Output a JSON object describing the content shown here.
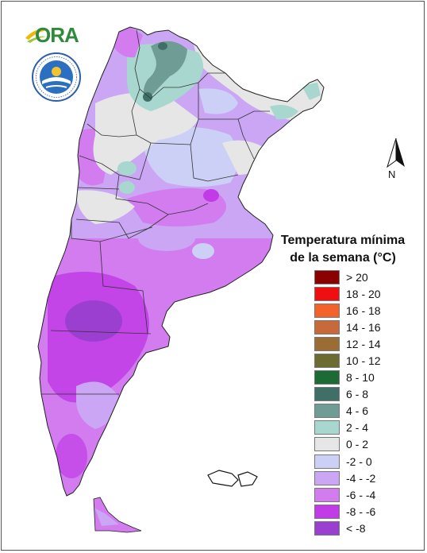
{
  "logo_ora": {
    "text": "ORA"
  },
  "logo_smn": {
    "ring_text": "SERVICIO METEOROLÓGICO NACIONAL · ARGENTINA"
  },
  "north_arrow": {
    "label": "N"
  },
  "legend": {
    "title_line1": "Temperatura mínima",
    "title_line2": "de la semana (°C)",
    "classes": [
      {
        "label": "> 20",
        "color": "#8b0000"
      },
      {
        "label": "18 - 20",
        "color": "#ee1010"
      },
      {
        "label": "16 - 18",
        "color": "#f4622a"
      },
      {
        "label": "14 - 16",
        "color": "#c7693a"
      },
      {
        "label": "12 - 14",
        "color": "#9b6c34"
      },
      {
        "label": "10 - 12",
        "color": "#6b6b32"
      },
      {
        "label": "8 - 10",
        "color": "#1c6b35"
      },
      {
        "label": "6 - 8",
        "color": "#3f6f66"
      },
      {
        "label": "4 - 6",
        "color": "#6f9c94"
      },
      {
        "label": "2 - 4",
        "color": "#a8d7cf"
      },
      {
        "label": "0 - 2",
        "color": "#e6e6e6"
      },
      {
        "label": "-2 - 0",
        "color": "#cdd0f6"
      },
      {
        "label": "-4 - -2",
        "color": "#caa6f4"
      },
      {
        "label": "-6 - -4",
        "color": "#d27cf0"
      },
      {
        "label": "-8 - -6",
        "color": "#c13ce6"
      },
      {
        "label": "< -8",
        "color": "#9b3fd1"
      }
    ]
  }
}
